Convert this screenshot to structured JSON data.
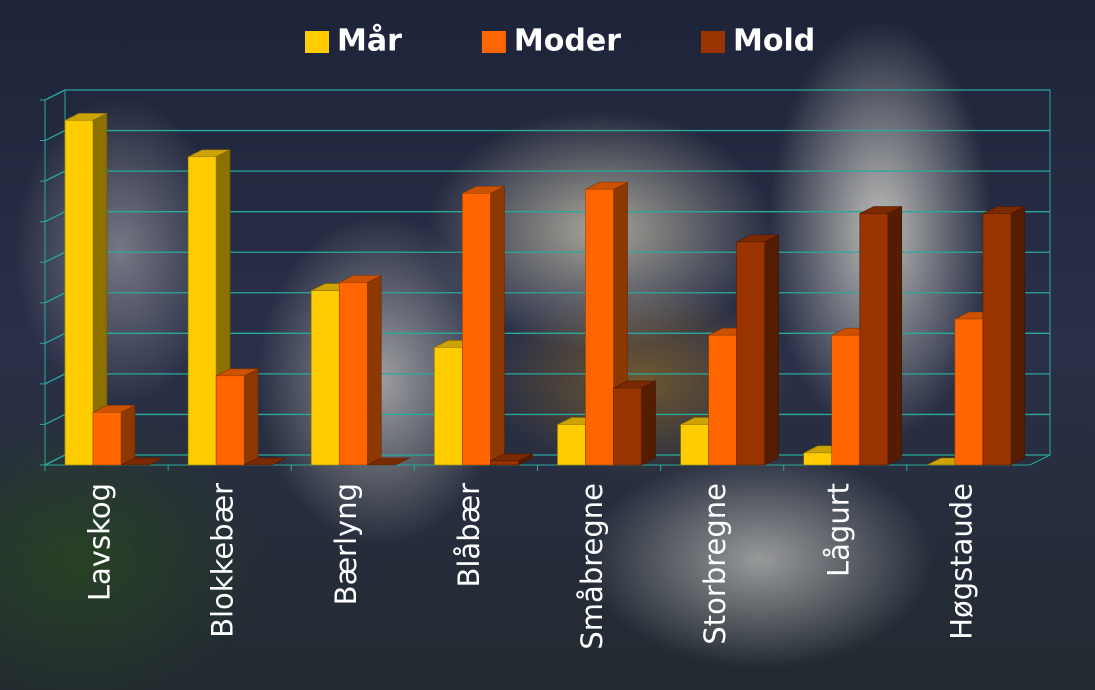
{
  "chart_data": {
    "type": "bar3d",
    "categories": [
      "Lavskog",
      "Blokkebær",
      "Bærlyng",
      "Blåbær",
      "Småbregne",
      "Storbregne",
      "Lågurt",
      "Høgstaude"
    ],
    "series": [
      {
        "name": "Mår",
        "color": "#ffcc00",
        "values": [
          8.5,
          7.6,
          4.3,
          2.9,
          1.0,
          1.0,
          0.3,
          0
        ]
      },
      {
        "name": "Moder",
        "color": "#ff6600",
        "values": [
          1.3,
          2.2,
          4.5,
          6.7,
          6.8,
          3.2,
          3.2,
          3.6
        ]
      },
      {
        "name": "Mold",
        "color": "#993300",
        "values": [
          0,
          0,
          0,
          0.1,
          1.9,
          5.5,
          6.2,
          6.2
        ]
      }
    ],
    "ylim": [
      0,
      9
    ],
    "yticks": [
      0,
      1,
      2,
      3,
      4,
      5,
      6,
      7,
      8,
      9
    ],
    "grid": true,
    "legend": "top"
  }
}
